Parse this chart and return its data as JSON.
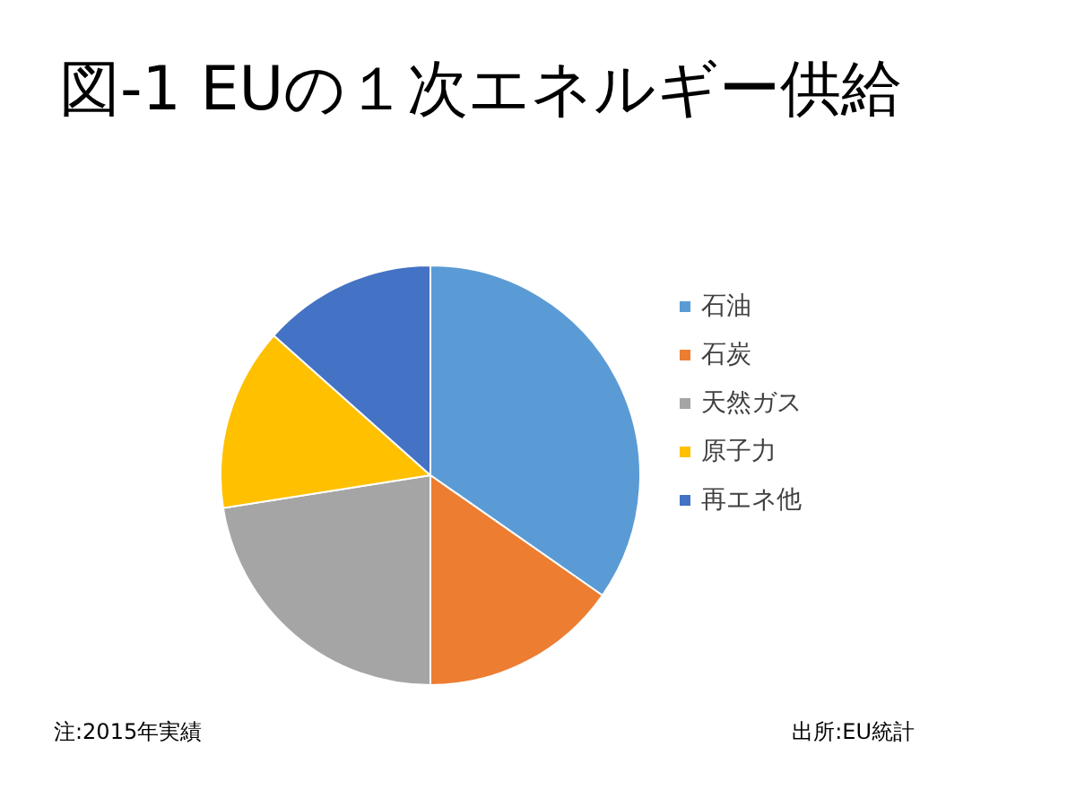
{
  "chart_data": {
    "type": "pie",
    "title": "図-1 EUの１次エネルギー供給",
    "categories": [
      "石油",
      "石炭",
      "天然ガス",
      "原子力",
      "再エネ他"
    ],
    "values": [
      34.7,
      15.3,
      22.5,
      14.1,
      13.4
    ],
    "colors": [
      "#5b9bd5",
      "#ed7d31",
      "#a5a5a5",
      "#ffc000",
      "#4472c4"
    ],
    "legend": "right",
    "annotations": [
      "注:2015年実績",
      "出所:EU統計"
    ]
  }
}
